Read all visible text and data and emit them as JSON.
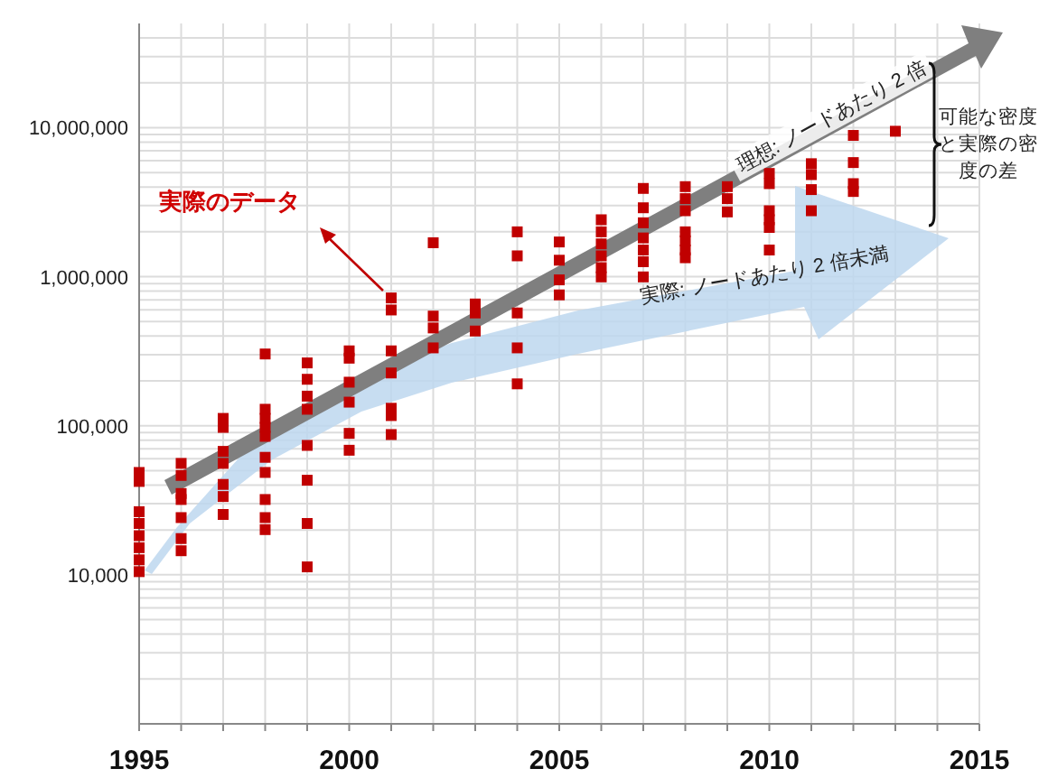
{
  "chart_data": {
    "type": "scatter",
    "log": "y",
    "grid": true,
    "marker": "square",
    "xlim": [
      1995,
      2015
    ],
    "xticks": [
      1995,
      {
        "value": 1996,
        "label": null
      },
      {
        "value": 1997,
        "label": null
      },
      {
        "value": 1998,
        "label": null
      },
      {
        "value": 1999,
        "label": null
      },
      2000,
      {
        "value": 2001,
        "label": null
      },
      {
        "value": 2002,
        "label": null
      },
      {
        "value": 2003,
        "label": null
      },
      {
        "value": 2004,
        "label": null
      },
      2005,
      {
        "value": 2006,
        "label": null
      },
      {
        "value": 2007,
        "label": null
      },
      {
        "value": 2008,
        "label": null
      },
      {
        "value": 2009,
        "label": null
      },
      2010,
      {
        "value": 2011,
        "label": null
      },
      {
        "value": 2012,
        "label": null
      },
      {
        "value": 2013,
        "label": null
      },
      {
        "value": 2014,
        "label": null
      },
      2015
    ],
    "ylim": [
      1000,
      50000000
    ],
    "yticks": [
      {
        "value": 2000,
        "label": null
      },
      {
        "value": 3000,
        "label": null
      },
      {
        "value": 4000,
        "label": null
      },
      {
        "value": 5000,
        "label": null
      },
      {
        "value": 6000,
        "label": null
      },
      {
        "value": 7000,
        "label": null
      },
      {
        "value": 8000,
        "label": null
      },
      {
        "value": 9000,
        "label": null
      },
      {
        "value": 10000,
        "label": "10,000"
      },
      {
        "value": 20000,
        "label": null
      },
      {
        "value": 30000,
        "label": null
      },
      {
        "value": 40000,
        "label": null
      },
      {
        "value": 50000,
        "label": null
      },
      {
        "value": 60000,
        "label": null
      },
      {
        "value": 70000,
        "label": null
      },
      {
        "value": 80000,
        "label": null
      },
      {
        "value": 90000,
        "label": null
      },
      {
        "value": 100000,
        "label": "100,000"
      },
      {
        "value": 200000,
        "label": null
      },
      {
        "value": 300000,
        "label": null
      },
      {
        "value": 400000,
        "label": null
      },
      {
        "value": 500000,
        "label": null
      },
      {
        "value": 600000,
        "label": null
      },
      {
        "value": 700000,
        "label": null
      },
      {
        "value": 800000,
        "label": null
      },
      {
        "value": 900000,
        "label": null
      },
      {
        "value": 1000000,
        "label": "1,000,000"
      },
      {
        "value": 2000000,
        "label": null
      },
      {
        "value": 3000000,
        "label": null
      },
      {
        "value": 4000000,
        "label": null
      },
      {
        "value": 5000000,
        "label": null
      },
      {
        "value": 6000000,
        "label": null
      },
      {
        "value": 7000000,
        "label": null
      },
      {
        "value": 8000000,
        "label": null
      },
      {
        "value": 9000000,
        "label": null
      },
      {
        "value": 10000000,
        "label": "10,000,000"
      },
      {
        "value": 20000000,
        "label": null
      },
      {
        "value": 30000000,
        "label": null
      },
      {
        "value": 40000000,
        "label": null
      }
    ],
    "series": [
      {
        "color": "#c00000",
        "x": [
          1995,
          1995,
          1995,
          1995,
          1995,
          1995,
          1995,
          1995,
          1996,
          1996,
          1996,
          1996,
          1996,
          1996,
          1996,
          1997,
          1997,
          1997,
          1997,
          1997,
          1997,
          1997,
          1998,
          1998,
          1998,
          1998,
          1998,
          1998,
          1998,
          1998,
          1998,
          1998,
          1999,
          1999,
          1999,
          1999,
          1999,
          1999,
          1999,
          1999,
          2000,
          2000,
          2000,
          2000,
          2000,
          2000,
          2001,
          2001,
          2001,
          2001,
          2001,
          2001,
          2001,
          2002,
          2002,
          2002,
          2002,
          2003,
          2003,
          2003,
          2004,
          2004,
          2004,
          2004,
          2004,
          2005,
          2005,
          2005,
          2005,
          2006,
          2006,
          2006,
          2006,
          2006,
          2006,
          2007,
          2007,
          2007,
          2007,
          2007,
          2007,
          2007,
          2008,
          2008,
          2008,
          2008,
          2008,
          2008,
          2008,
          2009,
          2009,
          2009,
          2010,
          2010,
          2010,
          2010,
          2010,
          2010,
          2011,
          2011,
          2011,
          2011,
          2012,
          2012,
          2012,
          2012,
          2013
        ],
        "values": [
          48600,
          42300,
          26500,
          22100,
          18300,
          15200,
          12600,
          10500,
          55900,
          46400,
          35100,
          32000,
          24200,
          17500,
          14500,
          112000,
          97500,
          67300,
          55900,
          40400,
          33500,
          25400,
          303000,
          129000,
          112000,
          97500,
          84900,
          61400,
          48600,
          32000,
          24200,
          20100,
          264000,
          205000,
          158000,
          129000,
          73800,
          43100,
          22100,
          11300,
          318000,
          284000,
          196000,
          144000,
          88900,
          68500,
          720000,
          598000,
          318000,
          226000,
          131000,
          117000,
          87300,
          1690000,
          544000,
          453000,
          333000,
          656000,
          571000,
          432000,
          2000000,
          1380000,
          571000,
          333000,
          191000,
          1710000,
          1290000,
          952000,
          755000,
          2410000,
          2000000,
          1660000,
          1380000,
          1150000,
          997000,
          3910000,
          2900000,
          2300000,
          1820000,
          1510000,
          1260000,
          997000,
          4020000,
          3340000,
          2770000,
          2000000,
          1740000,
          1510000,
          1340000,
          4020000,
          3340000,
          2720000,
          4930000,
          4210000,
          2770000,
          2410000,
          2140000,
          1510000,
          5730000,
          4840000,
          3840000,
          2770000,
          8870000,
          5830000,
          4210000,
          3730000,
          9460000
        ]
      }
    ],
    "annotations": [
      "実際のデータ",
      "理想: ノードあたり 2 倍",
      "実際: ノードあたり 2 倍未満",
      "可能な密度と実際の密度の差"
    ]
  }
}
